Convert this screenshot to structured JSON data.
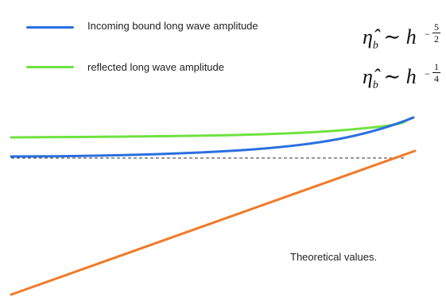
{
  "legend": {
    "items": [
      {
        "label": "Incoming bound long wave amplitude",
        "color": "#2b6fe0"
      },
      {
        "label": "reflected long wave amplitude",
        "color": "#6ee23f"
      }
    ]
  },
  "formulas": [
    {
      "lhs": "η̂",
      "sub": "b",
      "rel": "∼",
      "base": "h",
      "sign": "−",
      "numerator": "5",
      "denominator": "2"
    },
    {
      "lhs": "η̂",
      "sub": "b",
      "rel": "∼",
      "base": "h",
      "sign": "−",
      "numerator": "1",
      "denominator": "4"
    }
  ],
  "note": "Theoretical values.",
  "curves": {
    "incoming_color": "#2b6fe0",
    "reflected_color": "#6ee23f",
    "theory_color": "#f07a2a",
    "reference_color": "#333333"
  }
}
